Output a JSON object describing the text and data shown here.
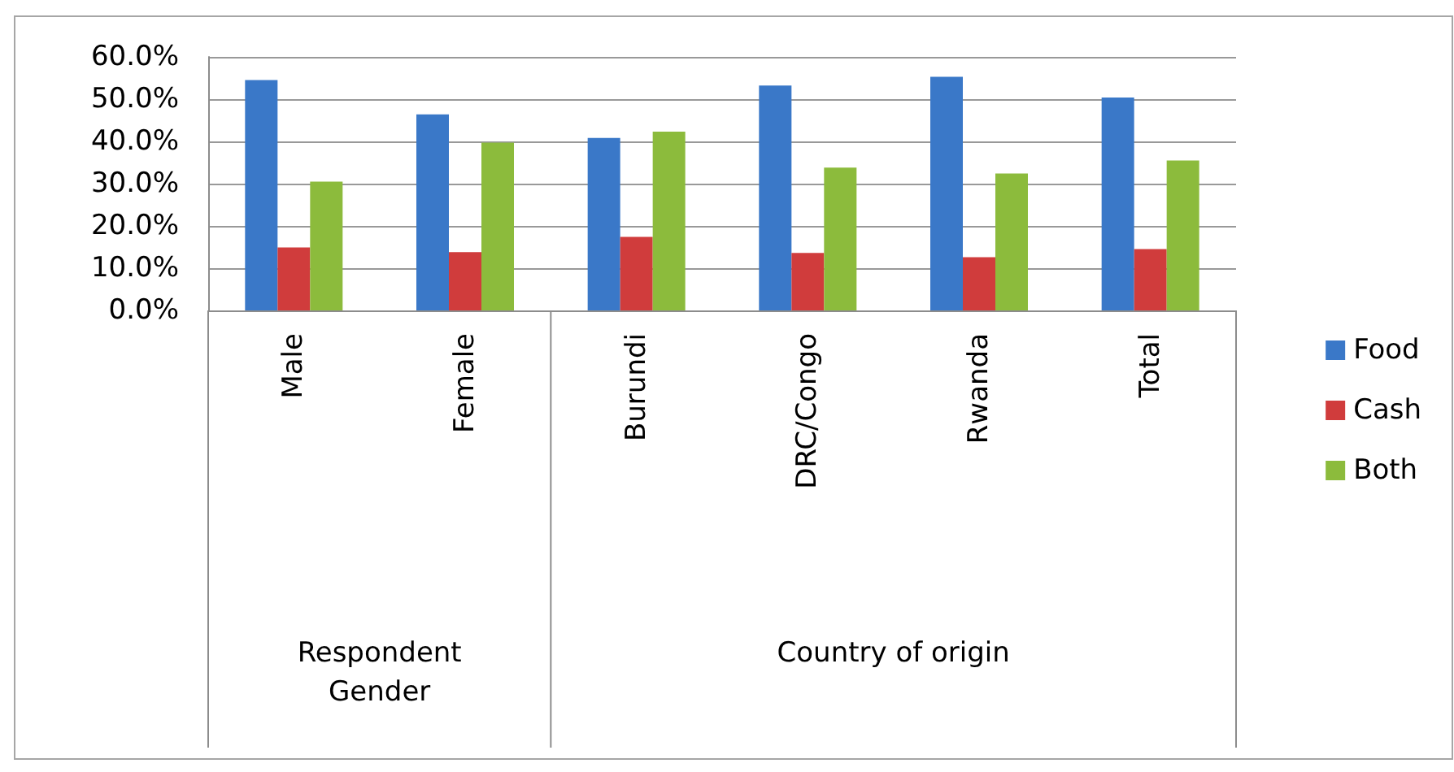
{
  "chart_data": {
    "type": "bar",
    "categories": [
      "Male",
      "Female",
      "Burundi",
      "DRC/Congo",
      "Rwanda",
      "Total"
    ],
    "series": [
      {
        "name": "Food",
        "color": "#3a78c8",
        "values": [
          54.5,
          46.4,
          40.8,
          53.2,
          55.3,
          50.4
        ]
      },
      {
        "name": "Cash",
        "color": "#d03c3c",
        "values": [
          14.9,
          13.8,
          17.4,
          13.6,
          12.6,
          14.5
        ]
      },
      {
        "name": "Both",
        "color": "#8cbb3c",
        "values": [
          30.5,
          39.7,
          42.3,
          33.8,
          32.4,
          35.5
        ]
      }
    ],
    "ylim": [
      0,
      60
    ],
    "yticks": [
      {
        "value": 0,
        "label": "0.0%"
      },
      {
        "value": 10,
        "label": "10.0%"
      },
      {
        "value": 20,
        "label": "20.0%"
      },
      {
        "value": 30,
        "label": "30.0%"
      },
      {
        "value": 40,
        "label": "40.0%"
      },
      {
        "value": 50,
        "label": "50.0%"
      },
      {
        "value": 60,
        "label": "60.0%"
      }
    ],
    "grid": "y",
    "legend": "right",
    "annotations": [
      "Respondent\nGender",
      "Country of origin"
    ]
  }
}
